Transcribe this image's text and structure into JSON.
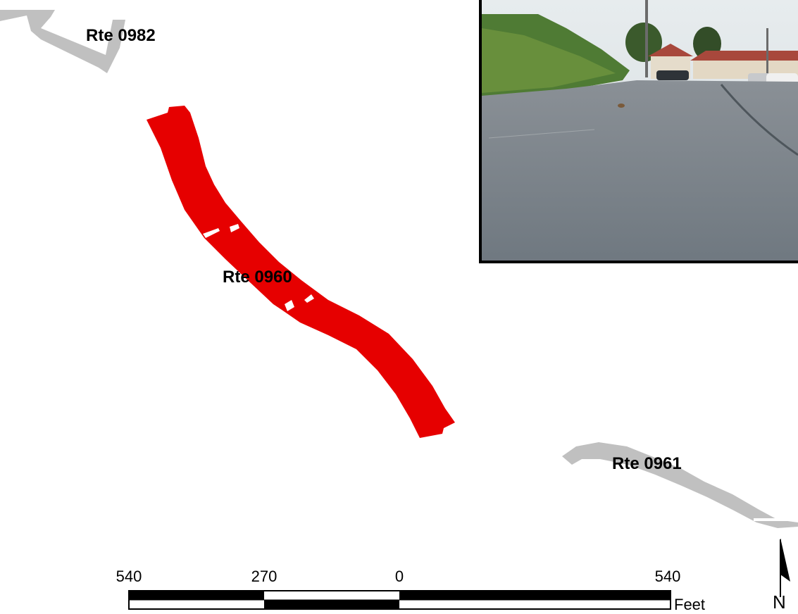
{
  "routes": [
    {
      "label": "Rte 0982",
      "status": "context",
      "color": "#c0c0c0"
    },
    {
      "label": "Rte 0960",
      "status": "highlighted",
      "color": "#e60000"
    },
    {
      "label": "Rte 0961",
      "status": "context",
      "color": "#c0c0c0"
    }
  ],
  "scale_bar": {
    "ticks": [
      "540",
      "270",
      "0",
      "540"
    ],
    "units": "Feet"
  },
  "north_arrow": {
    "letter": "N"
  },
  "photo": {
    "subject": "parking-lot-photo",
    "frame_color": "#000000"
  }
}
